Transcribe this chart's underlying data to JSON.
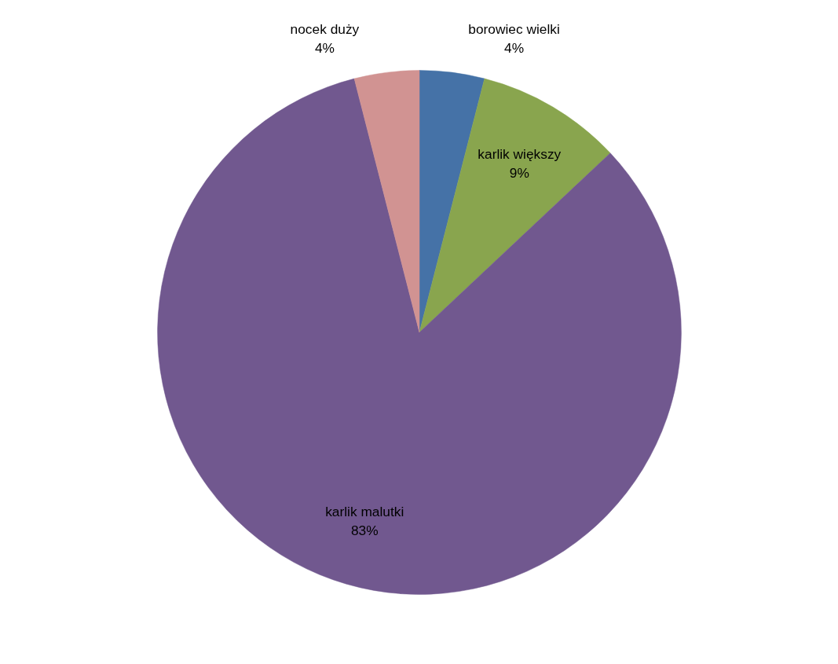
{
  "chart_data": {
    "type": "pie",
    "categories": [
      "borowiec wielki",
      "karlik większy",
      "karlik malutki",
      "nocek duży"
    ],
    "values": [
      4,
      9,
      83,
      4
    ],
    "colors": [
      "#4572a7",
      "#89a54e",
      "#71588f",
      "#d19392"
    ],
    "value_labels": [
      "4%",
      "9%",
      "83%",
      "4%"
    ]
  }
}
